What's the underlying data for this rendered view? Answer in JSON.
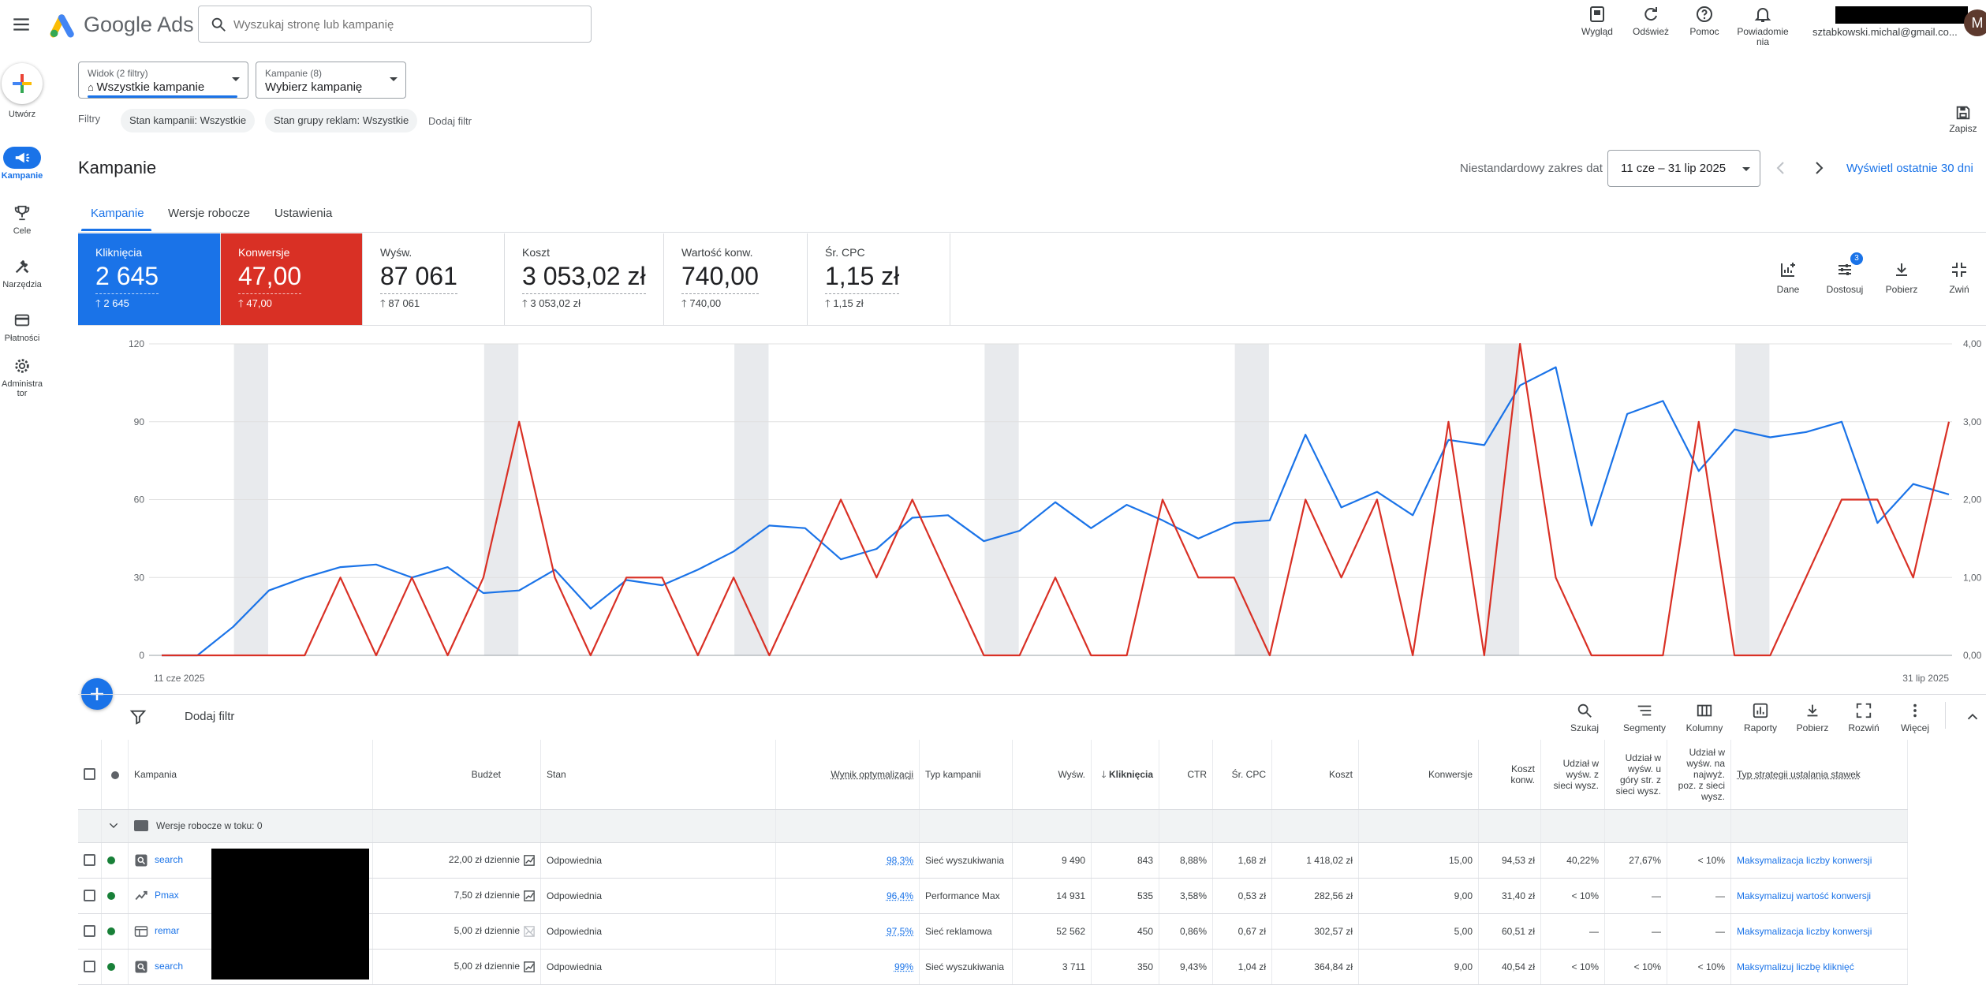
{
  "header": {
    "brand": "Google Ads",
    "search_placeholder": "Wyszukaj stronę lub kampanię",
    "actions": [
      {
        "id": "wyglad",
        "label": "Wygląd",
        "icon": "appearance-icon"
      },
      {
        "id": "odswiez",
        "label": "Odśwież",
        "icon": "refresh-icon"
      },
      {
        "id": "pomoc",
        "label": "Pomoc",
        "icon": "help-icon"
      },
      {
        "id": "powiadomienia",
        "label": "Powiadomie nia",
        "icon": "bell-icon"
      }
    ],
    "email": "sztabkowski.michal@gmail.co...",
    "avatar_letter": "M"
  },
  "leftnav": {
    "create_label": "Utwórz",
    "items": [
      {
        "label": "Kampanie",
        "icon": "campaigns-icon",
        "active": true
      },
      {
        "label": "Cele",
        "icon": "goals-icon",
        "active": false
      },
      {
        "label": "Narzędzia",
        "icon": "tools-icon",
        "active": false
      },
      {
        "label": "Płatności",
        "icon": "billing-icon",
        "active": false
      },
      {
        "label": "Administra tor",
        "icon": "admin-icon",
        "active": false
      }
    ]
  },
  "filterbar": {
    "view_small": "Widok (2 filtry)",
    "view_value": "Wszystkie kampanie",
    "campaigns_small": "Kampanie (8)",
    "campaigns_value": "Wybierz kampanię",
    "filters_label": "Filtry",
    "chips": [
      "Stan kampanii: Wszystkie",
      "Stan grupy reklam: Wszystkie"
    ],
    "add_filter": "Dodaj filtr",
    "save_label": "Zapisz"
  },
  "page": {
    "title": "Kampanie",
    "date_label": "Niestandardowy zakres dat",
    "date_range": "11 cze – 31 lip 2025",
    "last30": "Wyświetl ostatnie 30 dni",
    "tabs": [
      "Kampanie",
      "Wersje robocze",
      "Ustawienia"
    ]
  },
  "metrics": [
    {
      "title": "Kliknięcia",
      "value": "2 645",
      "delta": "2 645",
      "style": "blue"
    },
    {
      "title": "Konwersje",
      "value": "47,00",
      "delta": "47,00",
      "style": "red"
    },
    {
      "title": "Wyśw.",
      "value": "87 061",
      "delta": "87 061",
      "style": "plain"
    },
    {
      "title": "Koszt",
      "value": "3 053,02 zł",
      "delta": "3 053,02 zł",
      "style": "plain"
    },
    {
      "title": "Wartość konw.",
      "value": "740,00",
      "delta": "740,00",
      "style": "plain"
    },
    {
      "title": "Śr. CPC",
      "value": "1,15 zł",
      "delta": "1,15 zł",
      "style": "plain"
    }
  ],
  "chart_tools": [
    {
      "label": "Dane",
      "icon": "add-chart-icon"
    },
    {
      "label": "Dostosuj",
      "icon": "tune-icon",
      "badge": "3"
    },
    {
      "label": "Pobierz",
      "icon": "download-icon"
    },
    {
      "label": "Zwiń",
      "icon": "collapse-icon"
    }
  ],
  "chart_data": {
    "type": "line",
    "x_start_label": "11 cze 2025",
    "x_end_label": "31 lip 2025",
    "y_left_ticks": [
      "0",
      "30",
      "60",
      "90",
      "120"
    ],
    "y_right_ticks": [
      "0,00",
      "1,00",
      "2,00",
      "3,00",
      "4,00"
    ],
    "ylim_left": [
      0,
      120
    ],
    "ylim_right": [
      0,
      4
    ],
    "grid": true,
    "weekend_bands": [
      [
        2,
        3
      ],
      [
        9,
        10
      ],
      [
        16,
        17
      ],
      [
        23,
        24
      ],
      [
        30,
        31
      ],
      [
        37,
        38
      ],
      [
        44,
        45
      ]
    ],
    "series": [
      {
        "axis": "left",
        "color": "#1a73e8",
        "values": [
          0,
          0,
          11,
          25,
          30,
          34,
          35,
          30,
          34,
          24,
          25,
          33,
          18,
          29,
          27,
          33,
          40,
          50,
          49,
          37,
          41,
          53,
          54,
          44,
          48,
          59,
          49,
          58,
          52,
          45,
          51,
          52,
          85,
          57,
          63,
          54,
          83,
          81,
          104,
          111,
          50,
          93,
          98,
          71,
          87,
          84,
          86,
          90,
          51,
          66,
          62
        ]
      },
      {
        "axis": "right",
        "color": "#d93025",
        "values": [
          0,
          0,
          0,
          0,
          0,
          1,
          0,
          1,
          0,
          1,
          3,
          1,
          0,
          1,
          1,
          0,
          1,
          0,
          1,
          2,
          1,
          2,
          1,
          0,
          0,
          1,
          0,
          0,
          2,
          1,
          1,
          0,
          2,
          1,
          2,
          0,
          3,
          0,
          4,
          1,
          0,
          0,
          0,
          3,
          0,
          0,
          1,
          2,
          2,
          1,
          3
        ]
      }
    ]
  },
  "table_tools": [
    {
      "label": "Szukaj",
      "icon": "search-icon"
    },
    {
      "label": "Segmenty",
      "icon": "segments-icon"
    },
    {
      "label": "Kolumny",
      "icon": "columns-icon"
    },
    {
      "label": "Raporty",
      "icon": "reports-icon"
    },
    {
      "label": "Pobierz",
      "icon": "download-icon"
    },
    {
      "label": "Rozwiń",
      "icon": "expand-icon"
    },
    {
      "label": "Więcej",
      "icon": "more-vert-icon"
    }
  ],
  "table_add_filter": "Dodaj filtr",
  "table": {
    "headers": [
      "Kampania",
      "Budżet",
      "Stan",
      "Wynik optymalizacji",
      "Typ kampanii",
      "Wyśw.",
      "Kliknięcia",
      "CTR",
      "Śr. CPC",
      "Koszt",
      "Konwersje",
      "Koszt konw.",
      "Udział w wyśw. z sieci wysz.",
      "Udział w wyśw. u góry str. z sieci wysz.",
      "Udział w wyśw. na najwyż. poz. z sieci wysz.",
      "Typ strategii ustalania stawek"
    ],
    "group_row": "Wersje robocze w toku: 0",
    "rows": [
      {
        "icon": "search-campaign-icon",
        "name": "search",
        "budget": "22,00 zł dziennie",
        "status": "Odpowiednia",
        "opt": "98,3%",
        "type": "Sieć wyszukiwania",
        "impr": "9 490",
        "clicks": "843",
        "ctr": "8,88%",
        "cpc": "1,68 zł",
        "cost": "1 418,02 zł",
        "conv": "15,00",
        "cpa": "94,53 zł",
        "is": "40,22%",
        "is_top": "27,67%",
        "is_abs": "< 10%",
        "bid": "Maksymalizacja liczby konwersji"
      },
      {
        "icon": "pmax-campaign-icon",
        "name": "Pmax",
        "budget": "7,50 zł dziennie",
        "status": "Odpowiednia",
        "opt": "96,4%",
        "type": "Performance Max",
        "impr": "14 931",
        "clicks": "535",
        "ctr": "3,58%",
        "cpc": "0,53 zł",
        "cost": "282,56 zł",
        "conv": "9,00",
        "cpa": "31,40 zł",
        "is": "< 10%",
        "is_top": "—",
        "is_abs": "—",
        "bid": "Maksymalizuj wartość konwersji"
      },
      {
        "icon": "display-campaign-icon",
        "name": "remar",
        "budget": "5,00 zł dziennie",
        "status": "Odpowiednia",
        "opt": "97,5%",
        "type": "Sieć reklamowa",
        "impr": "52 562",
        "clicks": "450",
        "ctr": "0,86%",
        "cpc": "0,67 zł",
        "cost": "302,57 zł",
        "conv": "5,00",
        "cpa": "60,51 zł",
        "is": "—",
        "is_top": "—",
        "is_abs": "—",
        "bid": "Maksymalizacja liczby konwersji"
      },
      {
        "icon": "search-campaign-icon",
        "name": "search",
        "budget": "5,00 zł dziennie",
        "status": "Odpowiednia",
        "opt": "99%",
        "type": "Sieć wyszukiwania",
        "impr": "3 711",
        "clicks": "350",
        "ctr": "9,43%",
        "cpc": "1,04 zł",
        "cost": "364,84 zł",
        "conv": "9,00",
        "cpa": "40,54 zł",
        "is": "< 10%",
        "is_top": "< 10%",
        "is_abs": "< 10%",
        "bid": "Maksymalizuj liczbę kliknięć"
      }
    ]
  }
}
